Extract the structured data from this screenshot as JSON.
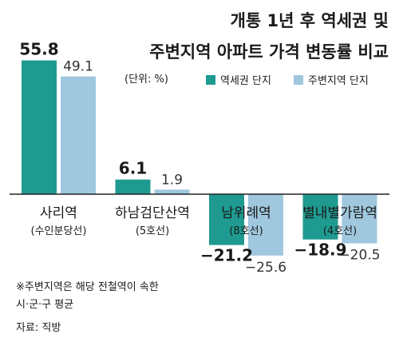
{
  "title_lines": [
    "개통 1년 후 역세권 및",
    "주변지역 아파트 가격 변동률 비교"
  ],
  "unit_label": "(단위: %)",
  "footnote_lines": [
    "※주변지역은 해당 전철역이 속한",
    "시·군·구 평균"
  ],
  "source": "자료: 직방",
  "colors": {
    "station_area": "#1f9a90",
    "nearby_area": "#9fc7dd",
    "station_label": "#1a1a1a",
    "nearby_label": "#333333",
    "baseline": "#222222",
    "text": "#1a1a1a"
  },
  "chart_data": {
    "type": "bar",
    "title": "개통 1년 후 역세권 및 주변지역 아파트 가격 변동률 비교",
    "unit": "%",
    "legend_position": "top-right",
    "grid": false,
    "categories": [
      {
        "name": "사리역",
        "line": "(수인분당선)"
      },
      {
        "name": "하남검단산역",
        "line": "(5호선)"
      },
      {
        "name": "남위례역",
        "line": "(8호선)"
      },
      {
        "name": "별내별가람역",
        "line": "(4호선)"
      }
    ],
    "series": [
      {
        "name": "역세권 단지",
        "values": [
          55.8,
          6.1,
          -21.2,
          -18.9
        ],
        "labels": [
          "55.8",
          "6.1",
          "−21.2",
          "−18.9"
        ]
      },
      {
        "name": "주변지역 단지",
        "values": [
          49.1,
          1.9,
          -25.6,
          -20.5
        ],
        "labels": [
          "49.1",
          "1.9",
          "−25.6",
          "−20.5"
        ]
      }
    ],
    "ylim": [
      -27.5,
      57.5
    ]
  }
}
